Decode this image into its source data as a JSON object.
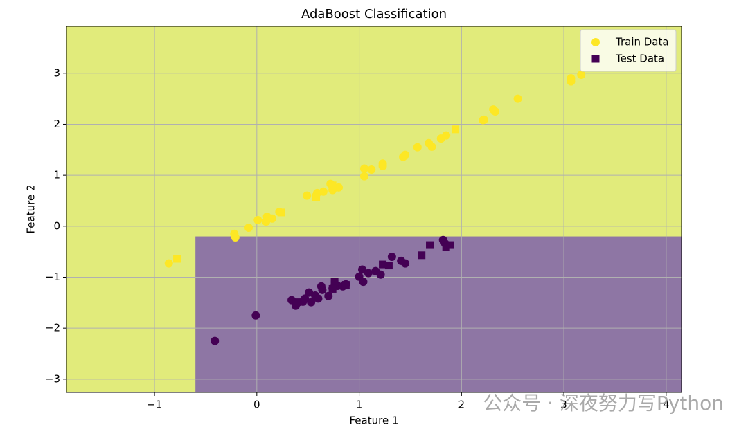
{
  "chart_data": {
    "type": "scatter",
    "title": "AdaBoost Classification",
    "x_label": "Feature 1",
    "y_label": "Feature 2",
    "watermark": "公众号 · 深夜努力写Python",
    "xlim": [
      -1.86,
      4.15
    ],
    "ylim": [
      -3.26,
      3.92
    ],
    "xticks": [
      {
        "value": -1,
        "label": "−1"
      },
      0,
      1,
      2,
      3,
      4
    ],
    "yticks": [
      {
        "value": -3,
        "label": "−3"
      },
      {
        "value": -2,
        "label": "−2"
      },
      {
        "value": -1,
        "label": "−1"
      },
      0,
      1,
      2,
      3
    ],
    "grid": true,
    "legend": "upper right",
    "background_color": "#e1eb7b",
    "decision_region": {
      "color": "#8e76a4",
      "xlim": [
        -0.6,
        4.15
      ],
      "ylim": [
        -3.26,
        -0.2
      ]
    },
    "series": [
      {
        "name": "Train Data",
        "marker": "circle",
        "color": "#fde725",
        "x": [
          -0.86,
          -0.22,
          -0.21,
          -0.08,
          0.01,
          0.1,
          0.09,
          0.15,
          0.22,
          0.49,
          0.59,
          0.65,
          0.72,
          0.74,
          0.8,
          1.05,
          1.05,
          1.12,
          1.23,
          1.23,
          1.43,
          1.45,
          1.57,
          1.68,
          1.71,
          1.8,
          1.85,
          2.21,
          2.22,
          2.31,
          2.33,
          2.55,
          3.07,
          3.07,
          3.17
        ],
        "values": [
          -0.73,
          -0.15,
          -0.22,
          -0.03,
          0.12,
          0.19,
          0.09,
          0.15,
          0.28,
          0.6,
          0.65,
          0.68,
          0.83,
          0.71,
          0.76,
          1.13,
          0.98,
          1.11,
          1.23,
          1.18,
          1.36,
          1.4,
          1.55,
          1.63,
          1.56,
          1.72,
          1.78,
          2.08,
          2.09,
          2.29,
          2.25,
          2.5,
          2.9,
          2.84,
          2.97
        ]
      },
      {
        "marker": "circle",
        "color": "#440154",
        "x": [
          -0.41,
          -0.01,
          0.34,
          0.38,
          0.45,
          0.47,
          0.51,
          0.53,
          0.57,
          0.6,
          0.63,
          0.64,
          0.7,
          0.74,
          0.79,
          0.84,
          0.87,
          1.0,
          1.03,
          1.04,
          1.09,
          1.16,
          1.21,
          1.32,
          1.41,
          1.45,
          1.82,
          1.84
        ],
        "values": [
          -2.25,
          -1.75,
          -1.45,
          -1.56,
          -1.48,
          -1.42,
          -1.3,
          -1.49,
          -1.36,
          -1.42,
          -1.18,
          -1.25,
          -1.37,
          -1.22,
          -1.17,
          -1.18,
          -1.14,
          -0.99,
          -0.85,
          -1.09,
          -0.92,
          -0.88,
          -0.95,
          -0.6,
          -0.68,
          -0.73,
          -0.27,
          -0.34
        ]
      },
      {
        "name": "Test Data",
        "marker": "square",
        "color": "#440154",
        "x": [
          0.39,
          0.76,
          0.76,
          0.87,
          1.23,
          1.29,
          1.61,
          1.69,
          1.85,
          1.89,
          0.74
        ],
        "values": [
          -1.49,
          -1.14,
          -1.09,
          -1.15,
          -0.75,
          -0.77,
          -0.57,
          -0.37,
          -0.41,
          -0.37,
          -1.23
        ]
      },
      {
        "marker": "square",
        "color": "#fde725",
        "x": [
          -0.78,
          0.24,
          0.58,
          0.74,
          1.94
        ],
        "values": [
          -0.64,
          0.27,
          0.57,
          0.8,
          1.9
        ]
      }
    ]
  }
}
